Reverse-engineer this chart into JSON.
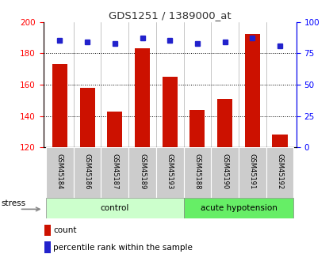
{
  "title": "GDS1251 / 1389000_at",
  "samples": [
    "GSM45184",
    "GSM45186",
    "GSM45187",
    "GSM45189",
    "GSM45193",
    "GSM45188",
    "GSM45190",
    "GSM45191",
    "GSM45192"
  ],
  "counts": [
    173,
    158,
    143,
    183,
    165,
    144,
    151,
    192,
    128
  ],
  "percentiles": [
    85,
    84,
    83,
    87,
    85,
    83,
    84,
    87,
    81
  ],
  "bar_color": "#cc1100",
  "dot_color": "#2222cc",
  "ylim_left": [
    120,
    200
  ],
  "ylim_right": [
    0,
    100
  ],
  "yticks_left": [
    120,
    140,
    160,
    180,
    200
  ],
  "yticks_right": [
    0,
    25,
    50,
    75,
    100
  ],
  "n_control": 5,
  "n_acute": 4,
  "control_label": "control",
  "acute_label": "acute hypotension",
  "stress_label": "stress",
  "legend_count": "count",
  "legend_pct": "percentile rank within the sample",
  "control_bg": "#ccffcc",
  "acute_bg": "#66ee66",
  "sample_bg": "#cccccc",
  "bg_color": "#ffffff"
}
